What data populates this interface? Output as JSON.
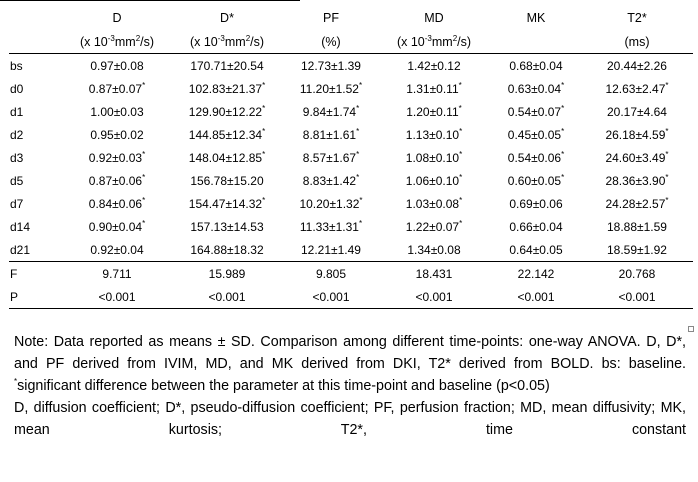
{
  "table": {
    "header": {
      "row_label": "",
      "columns": [
        {
          "name": "D",
          "unit": "(x 10<sup>-3</sup>mm<sup>2</sup>/s)"
        },
        {
          "name": "D*",
          "unit": "(x 10<sup>-3</sup>mm<sup>2</sup>/s)"
        },
        {
          "name": "PF",
          "unit": "(%)"
        },
        {
          "name": "MD",
          "unit": "(x 10<sup>-3</sup>mm<sup>2</sup>/s)"
        },
        {
          "name": "MK",
          "unit": ""
        },
        {
          "name": "T2*",
          "unit": "(ms)"
        }
      ]
    },
    "rows": [
      {
        "label": "bs",
        "cells": [
          "0.97±0.08",
          "170.71±20.54",
          "12.73±1.39",
          "1.42±0.12",
          "0.68±0.04",
          "20.44±2.26"
        ]
      },
      {
        "label": "d0",
        "cells": [
          "0.87±0.07<sup>*</sup>",
          "102.83±21.37<sup>*</sup>",
          "11.20±1.52<sup>*</sup>",
          "1.31±0.11<sup>*</sup>",
          "0.63±0.04<sup>*</sup>",
          "12.63±2.47<sup>*</sup>"
        ]
      },
      {
        "label": "d1",
        "cells": [
          "1.00±0.03",
          "129.90±12.22<sup>*</sup>",
          "9.84±1.74<sup>*</sup>",
          "1.20±0.11<sup>*</sup>",
          "0.54±0.07<sup>*</sup>",
          "20.17±4.64"
        ]
      },
      {
        "label": "d2",
        "cells": [
          "0.95±0.02",
          "144.85±12.34<sup>*</sup>",
          "8.81±1.61<sup>*</sup>",
          "1.13±0.10<sup>*</sup>",
          "0.45±0.05<sup>*</sup>",
          "26.18±4.59<sup>*</sup>"
        ]
      },
      {
        "label": "d3",
        "cells": [
          "0.92±0.03<sup>*</sup>",
          "148.04±12.85<sup>*</sup>",
          "8.57±1.67<sup>*</sup>",
          "1.08±0.10<sup>*</sup>",
          "0.54±0.06<sup>*</sup>",
          "24.60±3.49<sup>*</sup>"
        ]
      },
      {
        "label": "d5",
        "cells": [
          "0.87±0.06<sup>*</sup>",
          "156.78±15.20",
          "8.83±1.42<sup>*</sup>",
          "1.06±0.10<sup>*</sup>",
          "0.60±0.05<sup>*</sup>",
          "28.36±3.90<sup>*</sup>"
        ]
      },
      {
        "label": "d7",
        "cells": [
          "0.84±0.06<sup>*</sup>",
          "154.47±14.32<sup>*</sup>",
          "10.20±1.32<sup>*</sup>",
          "1.03±0.08<sup>*</sup>",
          "0.69±0.06",
          "24.28±2.57<sup>*</sup>"
        ]
      },
      {
        "label": "d14",
        "cells": [
          "0.90±0.04<sup>*</sup>",
          "157.13±14.53",
          "11.33±1.31<sup>*</sup>",
          "1.22±0.07<sup>*</sup>",
          "0.66±0.04",
          "18.88±1.59"
        ]
      },
      {
        "label": "d21",
        "cells": [
          "0.92±0.04",
          "164.88±18.32",
          "12.21±1.49",
          "1.34±0.08",
          "0.64±0.05",
          "18.59±1.92"
        ]
      }
    ],
    "stats": [
      {
        "label": "F",
        "cells": [
          "9.711",
          "15.989",
          "9.805",
          "18.431",
          "22.142",
          "20.768"
        ]
      },
      {
        "label": "P",
        "cells": [
          "&lt;0.001",
          "&lt;0.001",
          "&lt;0.001",
          "&lt;0.001",
          "&lt;0.001",
          "&lt;0.001"
        ]
      }
    ]
  },
  "notes": {
    "line1": "Note: Data reported as means ± SD. Comparison among different time-points: one-way ANOVA. D, D*, and PF derived from IVIM, MD, and MK derived from DKI, T2* derived from BOLD. bs: baseline.",
    "line2": "<sup>*</sup>significant difference between the parameter at this time-point and baseline (p&lt;0.05)",
    "line3": "D, diffusion coefficient; D*, pseudo-diffusion coefficient; PF, perfusion fraction; MD, mean diffusivity; MK, mean kurtosis; T2*, time constant"
  }
}
